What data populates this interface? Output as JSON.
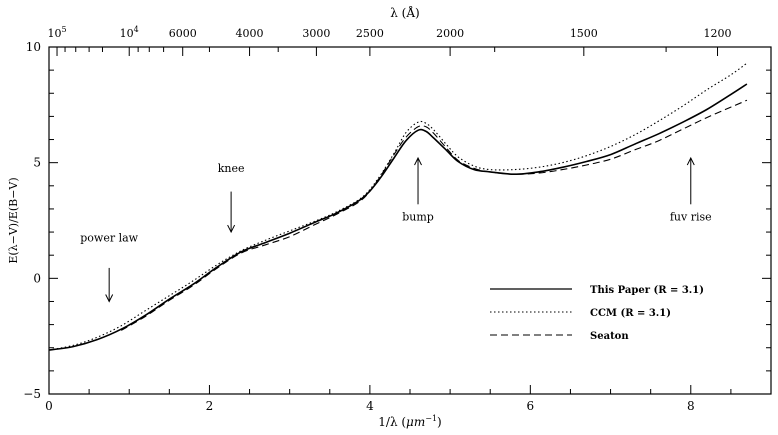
{
  "chart_data": {
    "type": "line",
    "xlabel_html": "1/λ (μm⁻¹)",
    "xlabel_prefix": "1/λ (",
    "xlabel_unit": "μm",
    "xlabel_exp": "−1",
    "xlabel_suffix": ")",
    "ylabel": "E(λ−V)/E(B−V)",
    "toplabel": "λ (Å)",
    "xlim": [
      0,
      9
    ],
    "ylim": [
      -5,
      10
    ],
    "x_ticks": [
      "0",
      "2",
      "4",
      "6",
      "8"
    ],
    "y_ticks": [
      "−5",
      "0",
      "5",
      "10"
    ],
    "top_ticks": [
      {
        "label_base": "10",
        "label_exp": "5",
        "lambda": 100000
      },
      {
        "label_base": "10",
        "label_exp": "4",
        "lambda": 10000
      },
      {
        "label": "6000",
        "lambda": 6000
      },
      {
        "label": "4000",
        "lambda": 4000
      },
      {
        "label": "3000",
        "lambda": 3000
      },
      {
        "label": "2500",
        "lambda": 2500
      },
      {
        "label": "2000",
        "lambda": 2000
      },
      {
        "label": "1500",
        "lambda": 1500
      },
      {
        "label": "1200",
        "lambda": 1200
      }
    ],
    "top_minor_lambda": [
      50000,
      30000,
      20000,
      15000,
      9000,
      8000,
      7000,
      5000,
      3500,
      1800,
      1300
    ],
    "legend_position": "bottom-right",
    "series": [
      {
        "name": "This Paper (R = 3.1)",
        "style": "solid",
        "x": [
          0.0,
          0.3,
          0.6,
          0.9,
          1.2,
          1.5,
          1.8,
          2.1,
          2.4,
          2.7,
          3.0,
          3.3,
          3.6,
          3.9,
          4.1,
          4.3,
          4.45,
          4.6,
          4.7,
          4.8,
          4.95,
          5.1,
          5.3,
          5.5,
          5.8,
          6.1,
          6.4,
          6.7,
          7.0,
          7.3,
          7.6,
          7.9,
          8.2,
          8.5,
          8.7
        ],
        "y": [
          -3.1,
          -2.95,
          -2.65,
          -2.2,
          -1.6,
          -0.9,
          -0.25,
          0.5,
          1.15,
          1.55,
          1.95,
          2.4,
          2.85,
          3.45,
          4.2,
          5.2,
          5.95,
          6.4,
          6.35,
          6.05,
          5.55,
          5.05,
          4.7,
          4.6,
          4.5,
          4.6,
          4.8,
          5.05,
          5.35,
          5.8,
          6.25,
          6.75,
          7.3,
          7.95,
          8.4
        ]
      },
      {
        "name": "CCM (R = 3.1)",
        "style": "dotted",
        "x": [
          0.0,
          0.3,
          0.6,
          0.9,
          1.2,
          1.5,
          1.8,
          2.1,
          2.4,
          2.7,
          3.0,
          3.3,
          3.6,
          3.9,
          4.1,
          4.3,
          4.45,
          4.6,
          4.7,
          4.8,
          4.95,
          5.1,
          5.3,
          5.5,
          5.8,
          6.1,
          6.4,
          6.7,
          7.0,
          7.3,
          7.6,
          7.9,
          8.2,
          8.5,
          8.7
        ],
        "y": [
          -3.1,
          -2.9,
          -2.55,
          -2.05,
          -1.4,
          -0.75,
          -0.1,
          0.6,
          1.2,
          1.65,
          2.05,
          2.45,
          2.9,
          3.5,
          4.3,
          5.4,
          6.3,
          6.75,
          6.7,
          6.4,
          5.8,
          5.25,
          4.85,
          4.7,
          4.7,
          4.8,
          5.0,
          5.3,
          5.7,
          6.2,
          6.8,
          7.45,
          8.15,
          8.8,
          9.3
        ]
      },
      {
        "name": "Seaton",
        "style": "dashed",
        "x": [
          0.9,
          1.2,
          1.5,
          1.8,
          2.1,
          2.4,
          2.7,
          3.0,
          3.3,
          3.6,
          3.9,
          4.1,
          4.3,
          4.45,
          4.6,
          4.7,
          4.8,
          4.95,
          5.1,
          5.3,
          5.5,
          5.8,
          6.1,
          6.4,
          6.7,
          7.0,
          7.3,
          7.6,
          7.9,
          8.2,
          8.5,
          8.7
        ],
        "y": [
          -2.25,
          -1.65,
          -0.95,
          -0.3,
          0.45,
          1.1,
          1.45,
          1.8,
          2.3,
          2.8,
          3.4,
          4.25,
          5.35,
          6.1,
          6.55,
          6.55,
          6.25,
          5.65,
          5.1,
          4.75,
          4.6,
          4.5,
          4.55,
          4.7,
          4.9,
          5.15,
          5.55,
          5.95,
          6.45,
          6.95,
          7.4,
          7.7
        ]
      }
    ],
    "annotations": [
      {
        "text": "power law",
        "x": 0.75,
        "label_y": 1.6,
        "arrow_dir": "down",
        "arrow_from": 0.45,
        "arrow_to": -1.0
      },
      {
        "text": "knee",
        "x": 2.27,
        "label_y": 4.6,
        "arrow_dir": "down",
        "arrow_from": 3.75,
        "arrow_to": 2.0
      },
      {
        "text": "bump",
        "x": 4.6,
        "label_y": 2.5,
        "arrow_dir": "up",
        "arrow_from": 3.2,
        "arrow_to": 5.2
      },
      {
        "text": "fuv rise",
        "x": 8.0,
        "label_y": 2.5,
        "arrow_dir": "up",
        "arrow_from": 3.2,
        "arrow_to": 5.2
      }
    ]
  }
}
